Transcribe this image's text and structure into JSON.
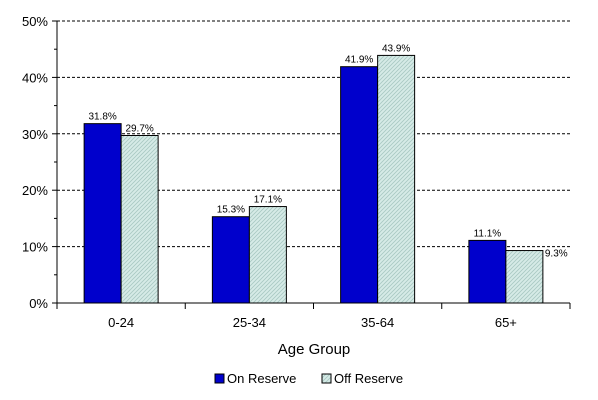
{
  "chart_data": {
    "type": "bar",
    "categories": [
      "0-24",
      "25-34",
      "35-64",
      "65+"
    ],
    "series": [
      {
        "name": "On Reserve",
        "values": [
          31.8,
          15.3,
          41.9,
          11.1
        ],
        "labels": [
          "31.8%",
          "15.3%",
          "41.9%",
          "11.1%"
        ],
        "color": "#0000cc"
      },
      {
        "name": "Off Reserve",
        "values": [
          29.7,
          17.1,
          43.9,
          9.3
        ],
        "labels": [
          "29.7%",
          "17.1%",
          "43.9%",
          "9.3%"
        ],
        "color": "#cce4e0"
      }
    ],
    "title": "",
    "xlabel": "Age Group",
    "ylabel": "",
    "ylim": [
      0,
      50
    ],
    "yticks": [
      0,
      10,
      20,
      30,
      40,
      50
    ],
    "ytick_labels": [
      "0%",
      "10%",
      "20%",
      "30%",
      "40%",
      "50%"
    ],
    "grid": "horizontal-dashed",
    "legend_position": "bottom"
  }
}
